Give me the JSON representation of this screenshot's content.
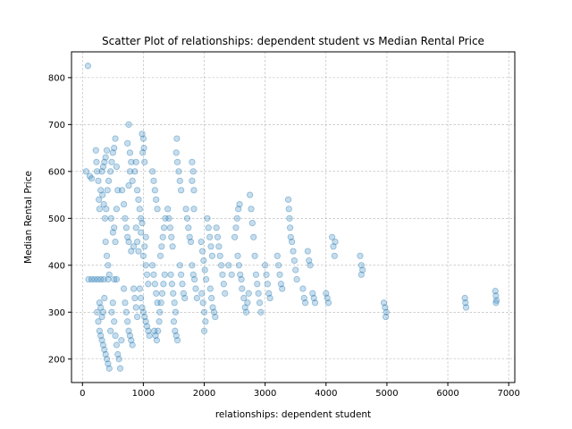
{
  "chart_data": {
    "type": "scatter",
    "title": "Scatter Plot of relationships: dependent student vs Median Rental Price",
    "xlabel": "relationships: dependent student",
    "ylabel": "Median Rental Price",
    "xlim": [
      -180,
      7100
    ],
    "ylim": [
      150,
      855
    ],
    "x_ticks": [
      0,
      1000,
      2000,
      3000,
      4000,
      5000,
      6000,
      7000
    ],
    "y_ticks": [
      200,
      300,
      400,
      500,
      600,
      700,
      800
    ],
    "grid": true,
    "marker_color": "#1f77b4",
    "marker_opacity": 0.25,
    "points": [
      [
        90,
        825
      ],
      [
        60,
        600
      ],
      [
        120,
        590
      ],
      [
        150,
        585
      ],
      [
        100,
        370
      ],
      [
        150,
        370
      ],
      [
        200,
        370
      ],
      [
        250,
        370
      ],
      [
        300,
        370
      ],
      [
        350,
        370
      ],
      [
        420,
        370
      ],
      [
        520,
        370
      ],
      [
        560,
        370
      ],
      [
        220,
        645
      ],
      [
        230,
        620
      ],
      [
        240,
        600
      ],
      [
        260,
        580
      ],
      [
        270,
        540
      ],
      [
        280,
        520
      ],
      [
        300,
        560
      ],
      [
        320,
        600
      ],
      [
        340,
        610
      ],
      [
        360,
        620
      ],
      [
        380,
        630
      ],
      [
        400,
        645
      ],
      [
        330,
        550
      ],
      [
        350,
        530
      ],
      [
        370,
        500
      ],
      [
        390,
        520
      ],
      [
        410,
        560
      ],
      [
        430,
        580
      ],
      [
        460,
        600
      ],
      [
        480,
        620
      ],
      [
        500,
        640
      ],
      [
        520,
        650
      ],
      [
        540,
        670
      ],
      [
        560,
        610
      ],
      [
        470,
        500
      ],
      [
        500,
        470
      ],
      [
        520,
        480
      ],
      [
        540,
        450
      ],
      [
        560,
        520
      ],
      [
        580,
        560
      ],
      [
        240,
        300
      ],
      [
        260,
        280
      ],
      [
        280,
        260
      ],
      [
        300,
        250
      ],
      [
        320,
        240
      ],
      [
        340,
        230
      ],
      [
        360,
        220
      ],
      [
        380,
        210
      ],
      [
        400,
        200
      ],
      [
        420,
        190
      ],
      [
        440,
        180
      ],
      [
        460,
        260
      ],
      [
        480,
        300
      ],
      [
        500,
        320
      ],
      [
        520,
        280
      ],
      [
        540,
        250
      ],
      [
        560,
        230
      ],
      [
        580,
        210
      ],
      [
        600,
        200
      ],
      [
        620,
        180
      ],
      [
        640,
        240
      ],
      [
        380,
        450
      ],
      [
        400,
        420
      ],
      [
        420,
        400
      ],
      [
        440,
        380
      ],
      [
        360,
        330
      ],
      [
        340,
        300
      ],
      [
        320,
        290
      ],
      [
        300,
        310
      ],
      [
        280,
        320
      ],
      [
        650,
        560
      ],
      [
        680,
        530
      ],
      [
        700,
        500
      ],
      [
        720,
        480
      ],
      [
        740,
        460
      ],
      [
        760,
        570
      ],
      [
        780,
        600
      ],
      [
        800,
        620
      ],
      [
        820,
        580
      ],
      [
        740,
        660
      ],
      [
        760,
        700
      ],
      [
        780,
        640
      ],
      [
        680,
        350
      ],
      [
        700,
        320
      ],
      [
        720,
        300
      ],
      [
        740,
        280
      ],
      [
        760,
        260
      ],
      [
        780,
        250
      ],
      [
        800,
        240
      ],
      [
        820,
        230
      ],
      [
        840,
        350
      ],
      [
        860,
        330
      ],
      [
        880,
        310
      ],
      [
        900,
        290
      ],
      [
        760,
        450
      ],
      [
        800,
        430
      ],
      [
        840,
        440
      ],
      [
        880,
        480
      ],
      [
        900,
        450
      ],
      [
        920,
        430
      ],
      [
        860,
        600
      ],
      [
        880,
        620
      ],
      [
        900,
        560
      ],
      [
        920,
        540
      ],
      [
        940,
        520
      ],
      [
        960,
        500
      ],
      [
        980,
        680
      ],
      [
        1000,
        670
      ],
      [
        1010,
        650
      ],
      [
        990,
        640
      ],
      [
        1020,
        620
      ],
      [
        940,
        350
      ],
      [
        960,
        330
      ],
      [
        980,
        310
      ],
      [
        1000,
        300
      ],
      [
        1020,
        290
      ],
      [
        1040,
        280
      ],
      [
        1060,
        270
      ],
      [
        1080,
        260
      ],
      [
        1100,
        250
      ],
      [
        1040,
        400
      ],
      [
        1060,
        380
      ],
      [
        1080,
        360
      ],
      [
        1000,
        420
      ],
      [
        1020,
        440
      ],
      [
        1040,
        460
      ],
      [
        960,
        470
      ],
      [
        980,
        490
      ],
      [
        1150,
        600
      ],
      [
        1170,
        580
      ],
      [
        1190,
        560
      ],
      [
        1210,
        540
      ],
      [
        1230,
        520
      ],
      [
        1150,
        400
      ],
      [
        1170,
        380
      ],
      [
        1190,
        360
      ],
      [
        1210,
        340
      ],
      [
        1230,
        320
      ],
      [
        1180,
        260
      ],
      [
        1200,
        250
      ],
      [
        1220,
        240
      ],
      [
        1240,
        260
      ],
      [
        1260,
        280
      ],
      [
        1270,
        300
      ],
      [
        1290,
        320
      ],
      [
        1310,
        340
      ],
      [
        1330,
        360
      ],
      [
        1350,
        380
      ],
      [
        1280,
        420
      ],
      [
        1300,
        440
      ],
      [
        1320,
        460
      ],
      [
        1340,
        480
      ],
      [
        1360,
        500
      ],
      [
        1400,
        520
      ],
      [
        1420,
        500
      ],
      [
        1440,
        480
      ],
      [
        1460,
        460
      ],
      [
        1480,
        440
      ],
      [
        1450,
        380
      ],
      [
        1470,
        360
      ],
      [
        1490,
        340
      ],
      [
        1510,
        320
      ],
      [
        1530,
        300
      ],
      [
        1500,
        280
      ],
      [
        1520,
        260
      ],
      [
        1540,
        250
      ],
      [
        1560,
        240
      ],
      [
        1540,
        640
      ],
      [
        1550,
        670
      ],
      [
        1560,
        620
      ],
      [
        1580,
        600
      ],
      [
        1600,
        580
      ],
      [
        1620,
        560
      ],
      [
        1600,
        400
      ],
      [
        1620,
        380
      ],
      [
        1640,
        360
      ],
      [
        1660,
        340
      ],
      [
        1680,
        330
      ],
      [
        1700,
        520
      ],
      [
        1720,
        500
      ],
      [
        1740,
        480
      ],
      [
        1760,
        460
      ],
      [
        1780,
        450
      ],
      [
        1800,
        620
      ],
      [
        1820,
        600
      ],
      [
        1800,
        580
      ],
      [
        1830,
        560
      ],
      [
        1830,
        520
      ],
      [
        1800,
        400
      ],
      [
        1820,
        380
      ],
      [
        1840,
        370
      ],
      [
        1860,
        350
      ],
      [
        1880,
        330
      ],
      [
        1950,
        450
      ],
      [
        1970,
        430
      ],
      [
        1990,
        410
      ],
      [
        2010,
        390
      ],
      [
        2030,
        370
      ],
      [
        1960,
        340
      ],
      [
        1980,
        320
      ],
      [
        2000,
        300
      ],
      [
        2020,
        280
      ],
      [
        2000,
        260
      ],
      [
        2050,
        500
      ],
      [
        2070,
        480
      ],
      [
        2090,
        460
      ],
      [
        2110,
        440
      ],
      [
        2130,
        420
      ],
      [
        2100,
        350
      ],
      [
        2120,
        330
      ],
      [
        2140,
        310
      ],
      [
        2160,
        300
      ],
      [
        2180,
        290
      ],
      [
        2200,
        480
      ],
      [
        2220,
        460
      ],
      [
        2240,
        440
      ],
      [
        2260,
        420
      ],
      [
        2280,
        400
      ],
      [
        2300,
        380
      ],
      [
        2320,
        360
      ],
      [
        2340,
        340
      ],
      [
        2400,
        400
      ],
      [
        2450,
        380
      ],
      [
        2500,
        460
      ],
      [
        2520,
        480
      ],
      [
        2540,
        500
      ],
      [
        2560,
        520
      ],
      [
        2580,
        530
      ],
      [
        2550,
        420
      ],
      [
        2570,
        400
      ],
      [
        2590,
        380
      ],
      [
        2610,
        370
      ],
      [
        2620,
        350
      ],
      [
        2650,
        330
      ],
      [
        2670,
        310
      ],
      [
        2690,
        300
      ],
      [
        2710,
        320
      ],
      [
        2730,
        340
      ],
      [
        2750,
        550
      ],
      [
        2770,
        520
      ],
      [
        2790,
        490
      ],
      [
        2810,
        460
      ],
      [
        2830,
        420
      ],
      [
        2850,
        380
      ],
      [
        2870,
        360
      ],
      [
        2890,
        340
      ],
      [
        2910,
        320
      ],
      [
        2930,
        300
      ],
      [
        3000,
        400
      ],
      [
        3020,
        380
      ],
      [
        3040,
        360
      ],
      [
        3060,
        340
      ],
      [
        3080,
        330
      ],
      [
        3200,
        420
      ],
      [
        3220,
        400
      ],
      [
        3240,
        380
      ],
      [
        3260,
        360
      ],
      [
        3280,
        350
      ],
      [
        3380,
        540
      ],
      [
        3390,
        520
      ],
      [
        3400,
        500
      ],
      [
        3410,
        480
      ],
      [
        3420,
        460
      ],
      [
        3440,
        450
      ],
      [
        3460,
        430
      ],
      [
        3480,
        410
      ],
      [
        3500,
        390
      ],
      [
        3520,
        370
      ],
      [
        3620,
        350
      ],
      [
        3640,
        330
      ],
      [
        3660,
        320
      ],
      [
        3700,
        430
      ],
      [
        3720,
        410
      ],
      [
        3740,
        400
      ],
      [
        3780,
        340
      ],
      [
        3800,
        330
      ],
      [
        3820,
        320
      ],
      [
        4000,
        340
      ],
      [
        4020,
        330
      ],
      [
        4040,
        320
      ],
      [
        4100,
        460
      ],
      [
        4120,
        440
      ],
      [
        4140,
        420
      ],
      [
        4150,
        450
      ],
      [
        4560,
        420
      ],
      [
        4580,
        400
      ],
      [
        4600,
        390
      ],
      [
        4580,
        380
      ],
      [
        4950,
        320
      ],
      [
        4970,
        310
      ],
      [
        4990,
        300
      ],
      [
        4980,
        290
      ],
      [
        6280,
        330
      ],
      [
        6290,
        320
      ],
      [
        6300,
        310
      ],
      [
        6780,
        345
      ],
      [
        6790,
        335
      ],
      [
        6800,
        325
      ],
      [
        6790,
        320
      ]
    ]
  }
}
